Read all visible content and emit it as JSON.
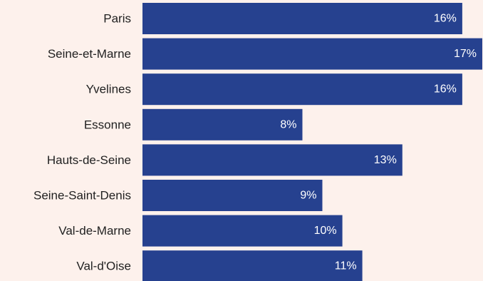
{
  "chart_data": {
    "type": "bar",
    "orientation": "horizontal",
    "categories": [
      "Paris",
      "Seine-et-Marne",
      "Yvelines",
      "Essonne",
      "Hauts-de-Seine",
      "Seine-Saint-Denis",
      "Val-de-Marne",
      "Val-d'Oise"
    ],
    "values": [
      16,
      17,
      16,
      8,
      13,
      9,
      10,
      11
    ],
    "value_labels": [
      "16%",
      "17%",
      "16%",
      "8%",
      "13%",
      "9%",
      "10%",
      "11%"
    ],
    "unit": "%",
    "xlim": [
      0,
      17
    ],
    "grid": false,
    "legend": "none",
    "colors": {
      "bar": "#26418f",
      "background": "#fdf1ec",
      "category_text": "#1f1f1f",
      "value_text": "#ffffff"
    }
  }
}
